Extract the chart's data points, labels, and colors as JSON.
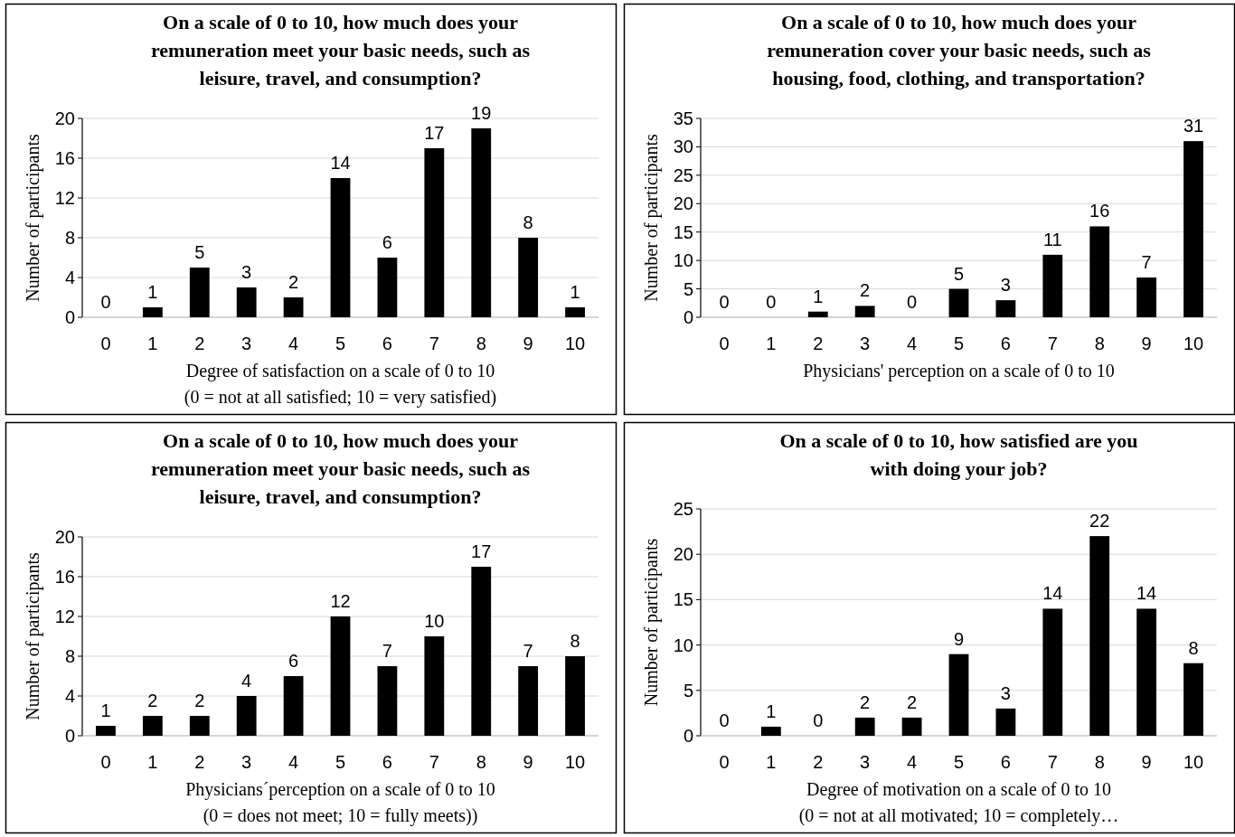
{
  "chart_data": [
    {
      "type": "bar",
      "title": "On a scale of 0 to 10, how much does your\nremuneration meet your basic needs, such as\nleisure, travel, and consumption?",
      "xlabel": "Degree of satisfaction on a scale of 0 to 10\n(0 = not at all satisfied; 10 = very satisfied)",
      "ylabel": "Number of participants",
      "categories": [
        "0",
        "1",
        "2",
        "3",
        "4",
        "5",
        "6",
        "7",
        "8",
        "9",
        "10"
      ],
      "values": [
        0,
        1,
        5,
        3,
        2,
        14,
        6,
        17,
        19,
        8,
        1
      ],
      "color": "#000000",
      "ylim": [
        0,
        20
      ],
      "yticks": [
        0,
        4,
        8,
        12,
        16,
        20
      ],
      "grid": "y",
      "data_labels": true
    },
    {
      "type": "bar",
      "title": "On a scale of 0 to 10, how much does your\nremuneration cover your basic needs, such as\nhousing, food, clothing, and transportation?",
      "xlabel": "Physicians' perception on a scale of 0 to 10",
      "ylabel": "Number of participants",
      "categories": [
        "0",
        "1",
        "2",
        "3",
        "4",
        "5",
        "6",
        "7",
        "8",
        "9",
        "10"
      ],
      "values": [
        0,
        0,
        1,
        2,
        0,
        5,
        3,
        11,
        16,
        7,
        31
      ],
      "color": "#000000",
      "ylim": [
        0,
        35
      ],
      "yticks": [
        0,
        5,
        10,
        15,
        20,
        25,
        30,
        35
      ],
      "grid": "y",
      "data_labels": true
    },
    {
      "type": "bar",
      "title": "On a scale of 0 to 10, how much does your\nremuneration meet your basic needs, such as\nleisure, travel, and consumption?",
      "xlabel": "Physicians´perception on a scale of 0 to 10\n(0 = does not meet; 10 = fully meets))",
      "ylabel": "Number of participants",
      "categories": [
        "0",
        "1",
        "2",
        "3",
        "4",
        "5",
        "6",
        "7",
        "8",
        "9",
        "10"
      ],
      "values": [
        1,
        2,
        2,
        4,
        6,
        12,
        7,
        10,
        17,
        7,
        8
      ],
      "color": "#000000",
      "ylim": [
        0,
        20
      ],
      "yticks": [
        0,
        4,
        8,
        12,
        16,
        20
      ],
      "grid": "y",
      "data_labels": true
    },
    {
      "type": "bar",
      "title": "On a scale of 0 to 10, how satisfied are you\nwith doing your job?",
      "xlabel": "Degree of motivation on a scale of 0 to 10\n(0 = not at all motivated; 10 = completely…",
      "ylabel": "Number of participants",
      "categories": [
        "0",
        "1",
        "2",
        "3",
        "4",
        "5",
        "6",
        "7",
        "8",
        "9",
        "10"
      ],
      "values": [
        0,
        1,
        0,
        2,
        2,
        9,
        3,
        14,
        22,
        14,
        8
      ],
      "color": "#000000",
      "ylim": [
        0,
        25
      ],
      "yticks": [
        0,
        5,
        10,
        15,
        20,
        25
      ],
      "grid": "y",
      "data_labels": true
    }
  ]
}
